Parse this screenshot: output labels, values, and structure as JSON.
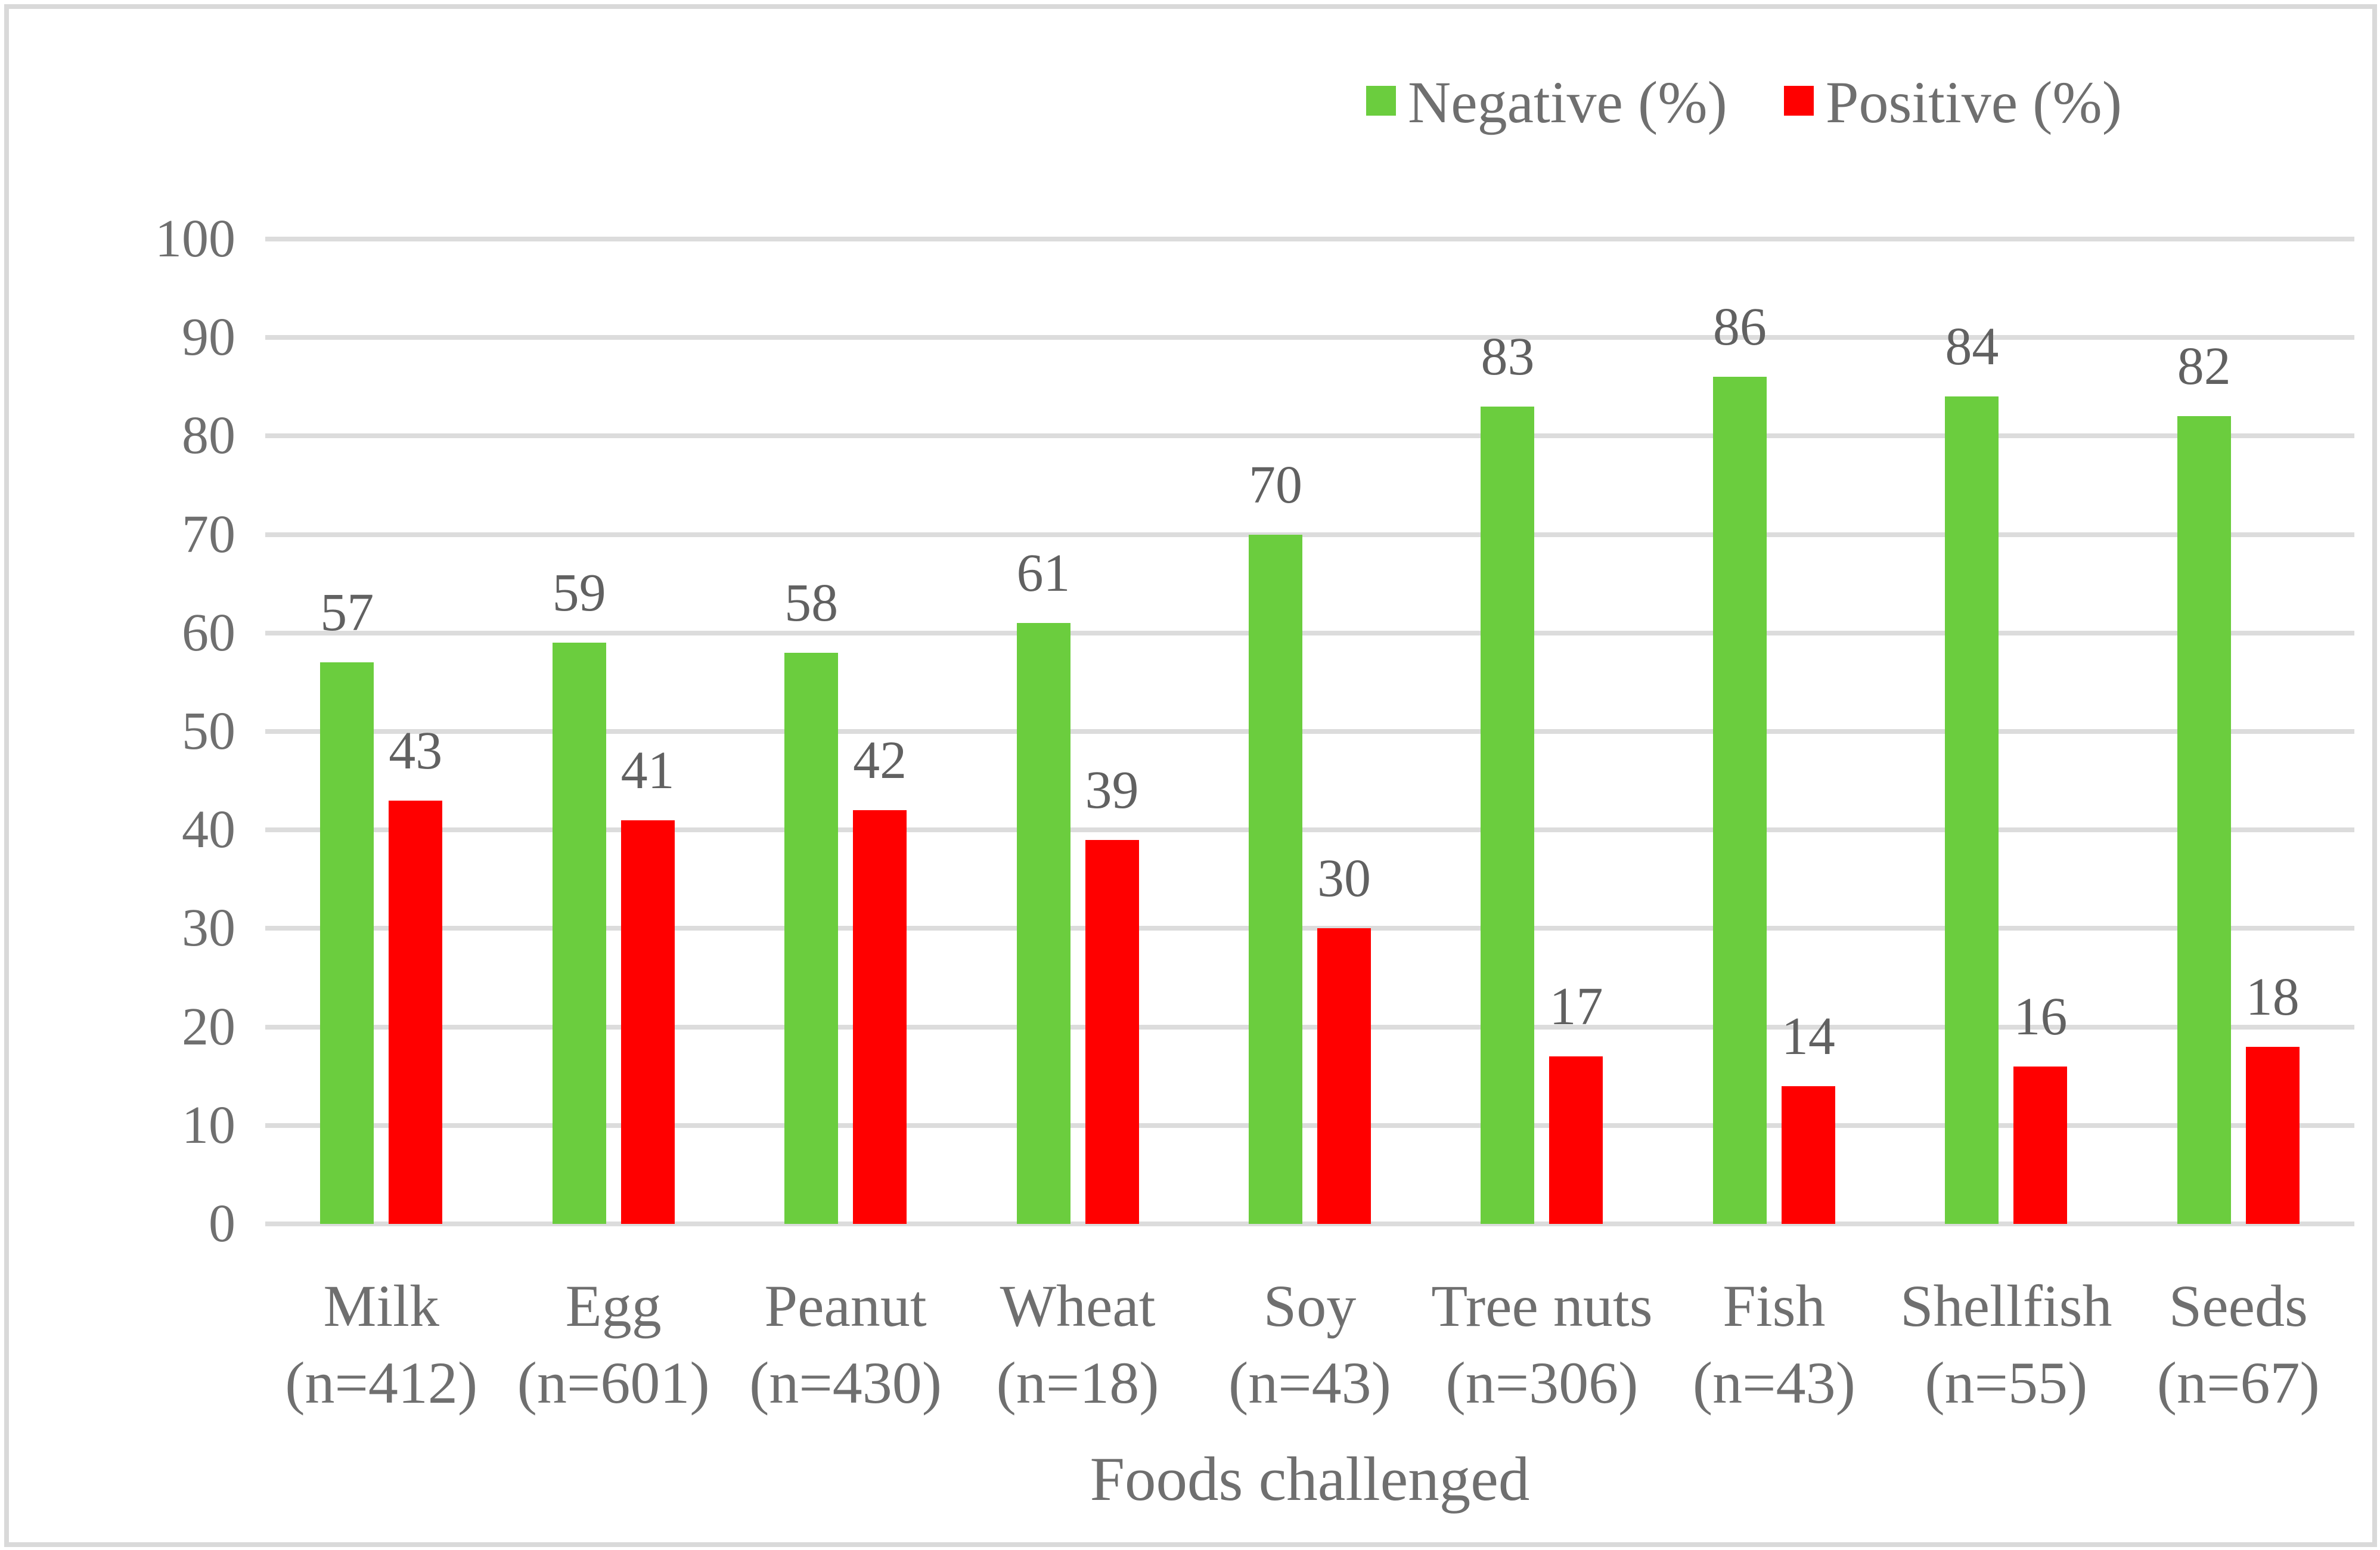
{
  "chart_data": {
    "type": "bar",
    "title": "",
    "xlabel": "Foods challenged",
    "ylabel": "",
    "ylim": [
      0,
      100
    ],
    "yticks": [
      0,
      10,
      20,
      30,
      40,
      50,
      60,
      70,
      80,
      90,
      100
    ],
    "grid": true,
    "legend_position": "top-right",
    "categories": [
      "Milk",
      "Egg",
      "Peanut",
      "Wheat",
      "Soy",
      "Tree nuts",
      "Fish",
      "Shellfish",
      "Seeds"
    ],
    "category_sublabels": [
      "(n=412)",
      "(n=601)",
      "(n=430)",
      "(n=18)",
      "(n=43)",
      "(n=306)",
      "(n=43)",
      "(n=55)",
      "(n=67)"
    ],
    "series": [
      {
        "name": "Negative (%)",
        "color": "#6BCD3E",
        "values": [
          57,
          59,
          58,
          61,
          70,
          83,
          86,
          84,
          82
        ]
      },
      {
        "name": "Positive (%)",
        "color": "#FF0000",
        "values": [
          43,
          41,
          42,
          39,
          30,
          17,
          14,
          16,
          18
        ]
      }
    ]
  },
  "colors": {
    "gridline": "#DCDCDC",
    "frame_border": "#D9D9D9",
    "axis_text": "#6F6F6F",
    "data_label_text": "#616161"
  }
}
